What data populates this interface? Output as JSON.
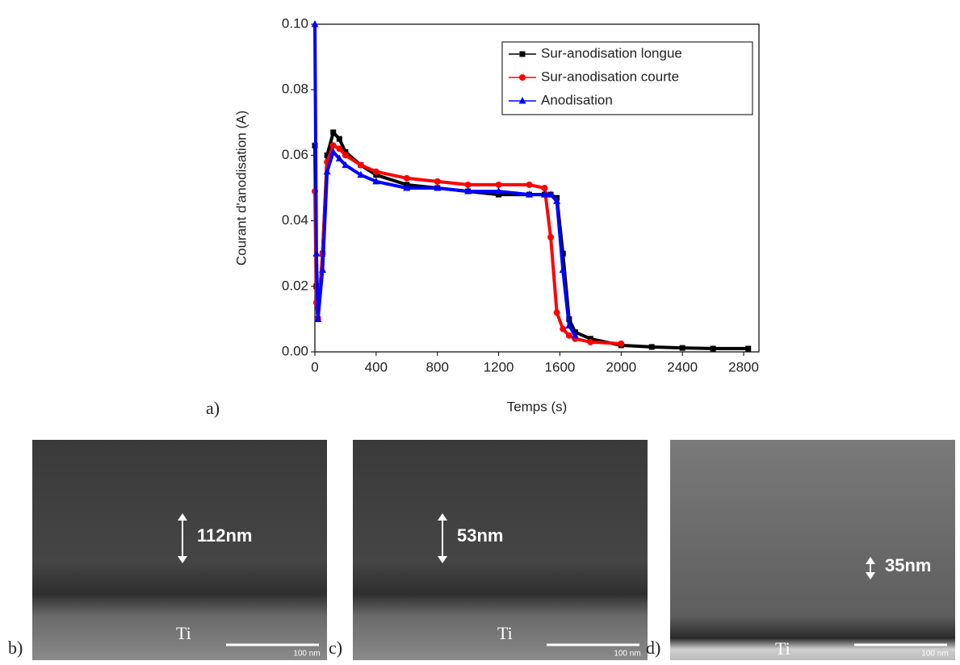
{
  "chart_data": {
    "type": "line",
    "xlabel": "Temps (s)",
    "ylabel": "Courant d'anodisation (A)",
    "x": [
      0,
      10,
      20,
      50,
      80,
      120,
      160,
      200,
      300,
      400,
      600,
      800,
      1000,
      1200,
      1400,
      1500,
      1540,
      1580,
      1620,
      1660,
      1700,
      1800,
      2000,
      2200,
      2400,
      2600,
      2830
    ],
    "series": [
      {
        "name": "Sur-anodisation longue",
        "color": "#000000",
        "marker": "square",
        "values": [
          0.063,
          0.02,
          0.01,
          0.03,
          0.06,
          0.067,
          0.065,
          0.061,
          0.057,
          0.054,
          0.051,
          0.05,
          0.049,
          0.048,
          0.048,
          0.048,
          0.048,
          0.047,
          0.03,
          0.01,
          0.006,
          0.004,
          0.002,
          0.0015,
          0.0012,
          0.001,
          0.001
        ]
      },
      {
        "name": "Sur-anodisation courte",
        "color": "#ff0000",
        "marker": "circle",
        "values": [
          0.049,
          0.015,
          0.01,
          0.03,
          0.058,
          0.063,
          0.062,
          0.06,
          0.057,
          0.055,
          0.053,
          0.052,
          0.051,
          0.051,
          0.051,
          0.05,
          0.035,
          0.012,
          0.007,
          0.005,
          0.004,
          0.003,
          0.0025,
          null,
          null,
          null,
          null
        ]
      },
      {
        "name": "Anodisation",
        "color": "#0000ff",
        "marker": "triangle",
        "values": [
          0.1,
          0.03,
          0.01,
          0.025,
          0.055,
          0.061,
          0.059,
          0.057,
          0.054,
          0.052,
          0.05,
          0.05,
          0.049,
          0.049,
          0.048,
          0.048,
          0.048,
          0.046,
          0.025,
          0.008,
          0.005,
          null,
          null,
          null,
          null,
          null,
          null
        ]
      }
    ],
    "xlim": [
      0,
      2900
    ],
    "xticks": [
      0,
      400,
      800,
      1200,
      1600,
      2000,
      2400,
      2800
    ],
    "ylim": [
      0,
      0.1
    ],
    "yticks": [
      {
        "value": 0,
        "label": "0.00"
      },
      0.02,
      0.04,
      0.06,
      0.08,
      {
        "value": 0.1,
        "label": "0.10"
      }
    ],
    "legend": "upper right",
    "panel_label": "a)"
  },
  "panels": [
    {
      "label": "b)",
      "thickness": "112nm",
      "substrate": "Ti",
      "scale": "100 nm"
    },
    {
      "label": "c)",
      "thickness": "53nm",
      "substrate": "Ti",
      "scale": "100 nm"
    },
    {
      "label": "d)",
      "thickness": "35nm",
      "substrate": "Ti",
      "scale": "100 nm"
    }
  ]
}
